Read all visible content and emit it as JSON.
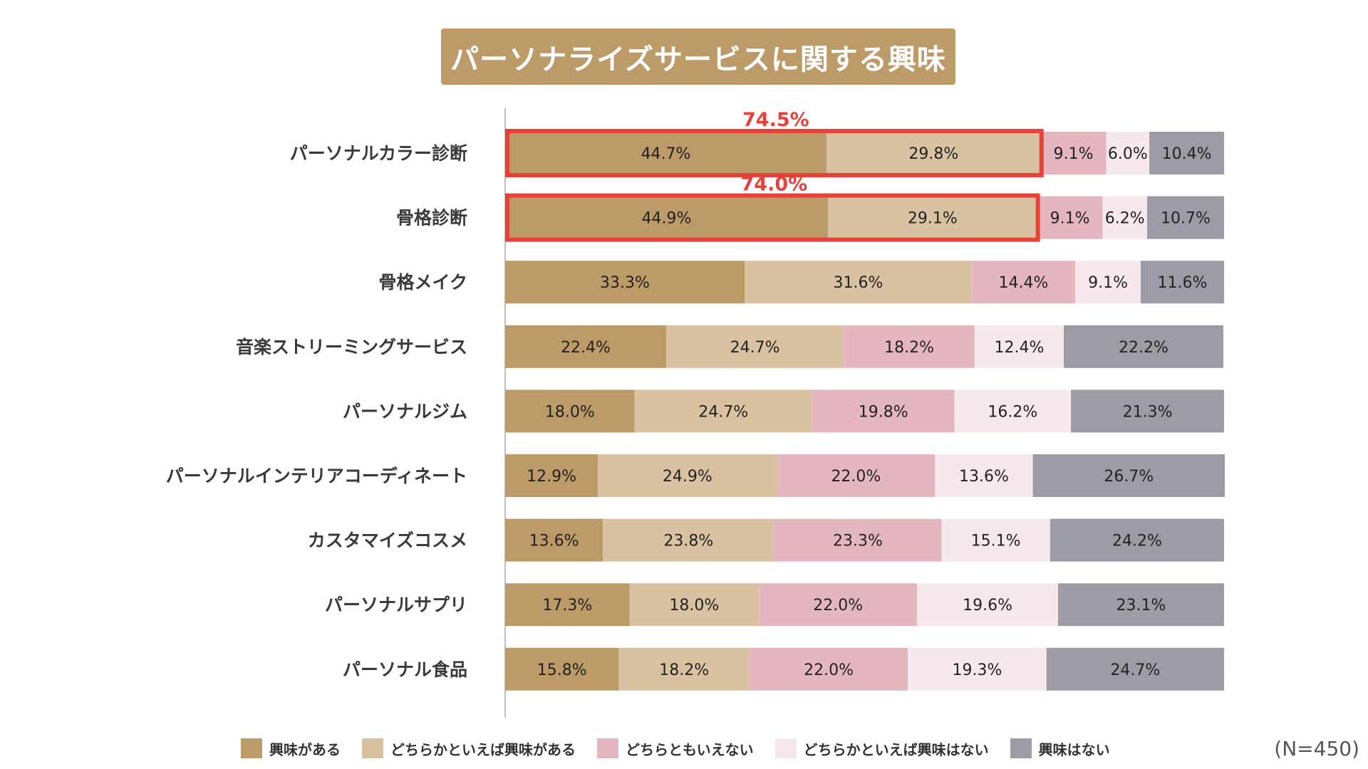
{
  "title": "パーソナライズサービスに関する興味",
  "sample_note": "(N=450)",
  "legend": [
    {
      "label": "興味がある",
      "color": "#bd9b69"
    },
    {
      "label": "どちらかといえば興味がある",
      "color": "#d9c2a2"
    },
    {
      "label": "どちらともいえない",
      "color": "#e3b6c0"
    },
    {
      "label": "どちらかといえば興味はない",
      "color": "#f6e8ec"
    },
    {
      "label": "興味はない",
      "color": "#9d9ca5"
    }
  ],
  "chart_data": {
    "type": "bar",
    "orientation": "horizontal",
    "stacked": true,
    "unit": "%",
    "title": "パーソナライズサービスに関する興味",
    "xlim": [
      0,
      100
    ],
    "categories": [
      "パーソナルカラー診断",
      "骨格診断",
      "骨格メイク",
      "音楽ストリーミングサービス",
      "パーソナルジム",
      "パーソナルインテリアコーディネート",
      "カスタマイズコスメ",
      "パーソナルサプリ",
      "パーソナル食品"
    ],
    "series": [
      {
        "name": "興味がある",
        "values": [
          44.7,
          44.9,
          33.3,
          22.4,
          18.0,
          12.9,
          13.6,
          17.3,
          15.8
        ]
      },
      {
        "name": "どちらかといえば興味がある",
        "values": [
          29.8,
          29.1,
          31.6,
          24.7,
          24.7,
          24.9,
          23.8,
          18.0,
          18.2
        ]
      },
      {
        "name": "どちらともいえない",
        "values": [
          9.1,
          9.1,
          14.4,
          18.2,
          19.8,
          22.0,
          23.3,
          22.0,
          22.0
        ]
      },
      {
        "name": "どちらかといえば興味はない",
        "values": [
          6.0,
          6.2,
          9.1,
          12.4,
          16.2,
          13.6,
          15.1,
          19.6,
          19.3
        ]
      },
      {
        "name": "興味はない",
        "values": [
          10.4,
          10.7,
          11.6,
          22.2,
          21.3,
          26.7,
          24.2,
          23.1,
          24.7
        ]
      }
    ],
    "highlights": [
      {
        "category": "パーソナルカラー診断",
        "label": "74.5%",
        "color": "#e8413a"
      },
      {
        "category": "骨格診断",
        "label": "74.0%",
        "color": "#e8413a"
      }
    ]
  }
}
